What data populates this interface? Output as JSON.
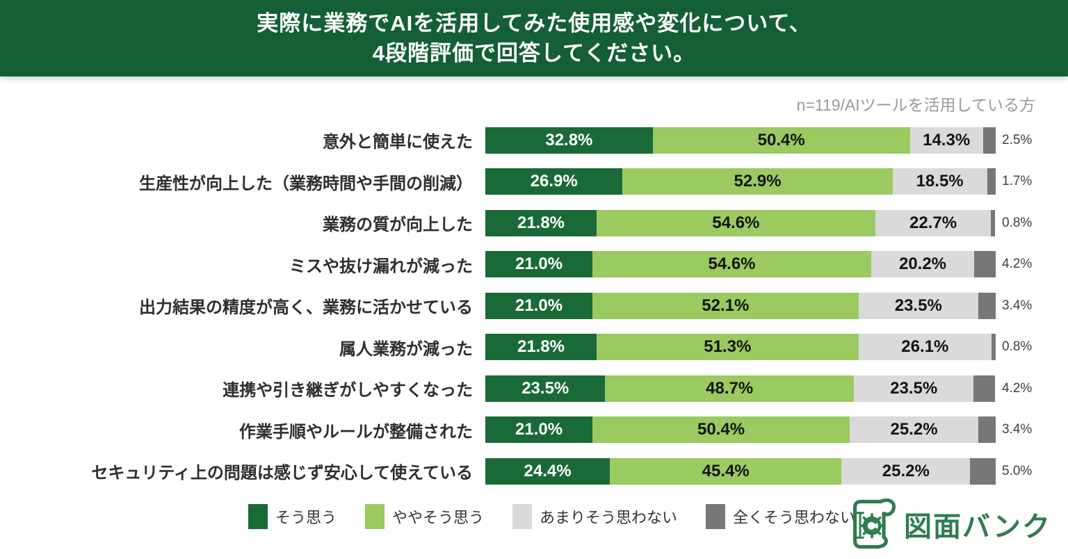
{
  "header": {
    "title_line1": "実際に業務でAIを活用してみた使用感や変化について、",
    "title_line2": "4段階評価で回答してください。"
  },
  "note": "n=119/AIツールを活用している方",
  "chart_data": {
    "type": "bar",
    "orientation": "horizontal",
    "stacked": true,
    "unit": "%",
    "title": "実際に業務でAIを活用してみた使用感や変化について、4段階評価で回答してください。",
    "subtitle": "n=119/AIツールを活用している方",
    "xlim": [
      0,
      100
    ],
    "grid": false,
    "legend_position": "bottom",
    "categories": [
      "意外と簡単に使えた",
      "生産性が向上した（業務時間や手間の削減）",
      "業務の質が向上した",
      "ミスや抜け漏れが減った",
      "出力結果の精度が高く、業務に活かせている",
      "属人業務が減った",
      "連携や引き継ぎがしやすくなった",
      "作業手順やルールが整備された",
      "セキュリティ上の問題は感じず安心して使えている"
    ],
    "series": [
      {
        "name": "そう思う",
        "color": "#1a6a38",
        "label_style": "inside-white",
        "values": [
          32.8,
          26.9,
          21.8,
          21.0,
          21.0,
          21.8,
          23.5,
          21.0,
          24.4
        ]
      },
      {
        "name": "ややそう思う",
        "color": "#9aca60",
        "label_style": "inside-dark",
        "values": [
          50.4,
          52.9,
          54.6,
          54.6,
          52.1,
          51.3,
          48.7,
          50.4,
          45.4
        ]
      },
      {
        "name": "あまりそう思わない",
        "color": "#dadada",
        "label_style": "inside-dark",
        "values": [
          14.3,
          18.5,
          22.7,
          20.2,
          23.5,
          26.1,
          23.5,
          25.2,
          25.2
        ]
      },
      {
        "name": "全くそう思わない",
        "color": "#777777",
        "label_style": "outside-right",
        "values": [
          2.5,
          1.7,
          0.8,
          4.2,
          3.4,
          0.8,
          4.2,
          3.4,
          5.0
        ]
      }
    ]
  },
  "logo": {
    "text": "図面バンク",
    "color": "#2e7d4f"
  },
  "colors": {
    "header_bg": "#145f35",
    "note_text": "#9a9a9a",
    "category_text": "#2e2e2e",
    "outside_label_text": "#3f3f3f"
  }
}
